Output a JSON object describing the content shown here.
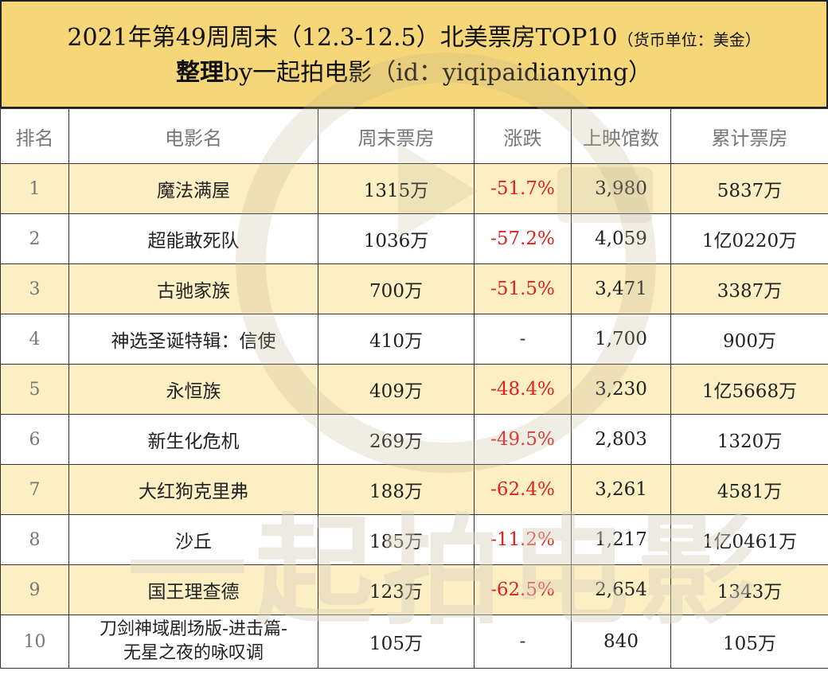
{
  "header": {
    "title_main": "2021年第49周周末（12.3-12.5）北美票房TOP10",
    "title_unit": "（货币单位：美金）",
    "subtitle_bold": "整理",
    "subtitle_rest": "by一起拍电影（id：yiqipaidianying）"
  },
  "table": {
    "columns": [
      "排名",
      "电影名",
      "周末票房",
      "涨跌",
      "上映馆数",
      "累计票房"
    ],
    "rows": [
      {
        "rank": "1",
        "name": "魔法满屋",
        "weekend": "1315万",
        "change": "-51.7%",
        "theaters": "3,980",
        "total": "5837万"
      },
      {
        "rank": "2",
        "name": "超能敢死队",
        "weekend": "1036万",
        "change": "-57.2%",
        "theaters": "4,059",
        "total": "1亿0220万"
      },
      {
        "rank": "3",
        "name": "古驰家族",
        "weekend": "700万",
        "change": "-51.5%",
        "theaters": "3,471",
        "total": "3387万"
      },
      {
        "rank": "4",
        "name": "神选圣诞特辑：信使",
        "weekend": "410万",
        "change": "-",
        "theaters": "1,700",
        "total": "900万"
      },
      {
        "rank": "5",
        "name": "永恒族",
        "weekend": "409万",
        "change": "-48.4%",
        "theaters": "3,230",
        "total": "1亿5668万"
      },
      {
        "rank": "6",
        "name": "新生化危机",
        "weekend": "269万",
        "change": "-49.5%",
        "theaters": "2,803",
        "total": "1320万"
      },
      {
        "rank": "7",
        "name": "大红狗克里弗",
        "weekend": "188万",
        "change": "-62.4%",
        "theaters": "3,261",
        "total": "4581万"
      },
      {
        "rank": "8",
        "name": "沙丘",
        "weekend": "185万",
        "change": "-11.2%",
        "theaters": "1,217",
        "total": "1亿0461万"
      },
      {
        "rank": "9",
        "name": "国王理查德",
        "weekend": "123万",
        "change": "-62.5%",
        "theaters": "2,654",
        "total": "1343万"
      },
      {
        "rank": "10",
        "name_line1": "刀剑神域剧场版-进击篇-",
        "name_line2": "无星之夜的咏叹调",
        "weekend": "105万",
        "change": "-",
        "theaters": "840",
        "total": "105万"
      }
    ]
  },
  "watermark": {
    "text": "一起拍电影"
  },
  "colors": {
    "header_bg": "#f5d77a",
    "stripe_bg": "#fcefc4",
    "negative": "#e0211f",
    "watermark": "#e8e2d2"
  }
}
